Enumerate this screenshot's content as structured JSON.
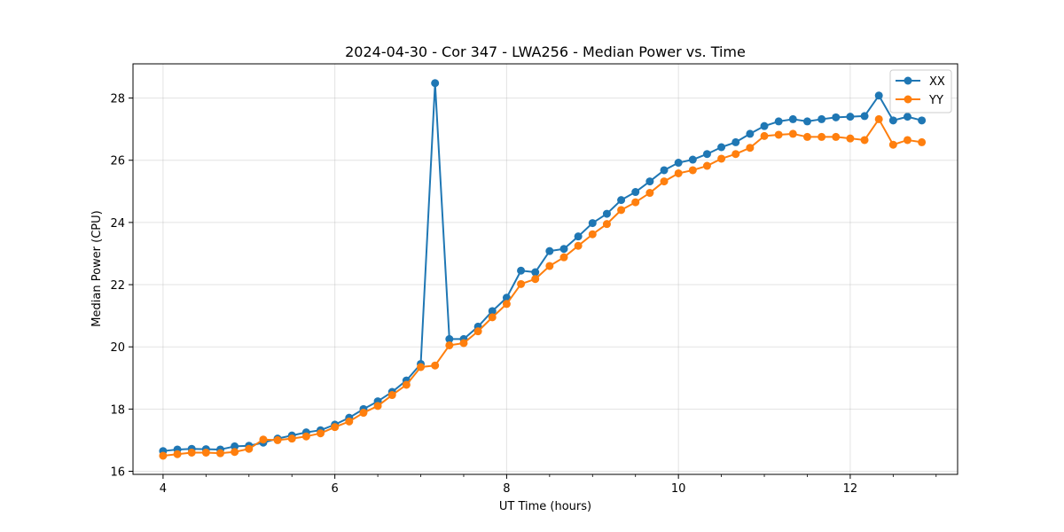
{
  "chart_data": {
    "type": "line",
    "title": "2024-04-30 - Cor 347 - LWA256 - Median Power vs. Time",
    "xlabel": "UT Time (hours)",
    "ylabel": "Median Power (CPU)",
    "xlim": [
      3.65,
      13.25
    ],
    "ylim": [
      15.9,
      29.1
    ],
    "xticks": [
      4,
      6,
      8,
      10,
      12
    ],
    "xticks_minor_step": 0.5,
    "yticks": [
      16,
      18,
      20,
      22,
      24,
      26,
      28
    ],
    "grid": true,
    "legend_position": "top-right",
    "x": [
      4.0,
      4.1667,
      4.3333,
      4.5,
      4.6667,
      4.8333,
      5.0,
      5.1667,
      5.3333,
      5.5,
      5.6667,
      5.8333,
      6.0,
      6.1667,
      6.3333,
      6.5,
      6.6667,
      6.8333,
      7.0,
      7.1667,
      7.3333,
      7.5,
      7.6667,
      7.8333,
      8.0,
      8.1667,
      8.3333,
      8.5,
      8.6667,
      8.8333,
      9.0,
      9.1667,
      9.3333,
      9.5,
      9.6667,
      9.8333,
      10.0,
      10.1667,
      10.3333,
      10.5,
      10.6667,
      10.8333,
      11.0,
      11.1667,
      11.3333,
      11.5,
      11.6667,
      11.8333,
      12.0,
      12.1667,
      12.3333,
      12.5,
      12.6667,
      12.8333
    ],
    "series": [
      {
        "name": "XX",
        "color": "#1f77b4",
        "values": [
          16.65,
          16.7,
          16.72,
          16.71,
          16.7,
          16.8,
          16.82,
          16.92,
          17.05,
          17.15,
          17.25,
          17.32,
          17.5,
          17.72,
          18.0,
          18.25,
          18.55,
          18.92,
          19.45,
          28.48,
          20.25,
          20.25,
          20.65,
          21.15,
          21.58,
          22.45,
          22.4,
          23.08,
          23.15,
          23.55,
          23.98,
          24.28,
          24.72,
          24.98,
          25.32,
          25.68,
          25.92,
          26.02,
          26.2,
          26.42,
          26.58,
          26.85,
          27.1,
          27.25,
          27.32,
          27.25,
          27.32,
          27.38,
          27.4,
          27.42,
          28.08,
          27.28,
          27.4,
          27.28
        ]
      },
      {
        "name": "YY",
        "color": "#ff7f0e",
        "values": [
          16.5,
          16.55,
          16.6,
          16.6,
          16.58,
          16.62,
          16.72,
          17.02,
          17.0,
          17.05,
          17.12,
          17.22,
          17.42,
          17.6,
          17.88,
          18.1,
          18.45,
          18.78,
          19.35,
          19.4,
          20.05,
          20.12,
          20.5,
          20.95,
          21.38,
          22.02,
          22.18,
          22.6,
          22.88,
          23.25,
          23.62,
          23.95,
          24.4,
          24.65,
          24.95,
          25.32,
          25.58,
          25.68,
          25.82,
          26.05,
          26.2,
          26.4,
          26.78,
          26.82,
          26.85,
          26.75,
          26.75,
          26.75,
          26.7,
          26.65,
          27.32,
          26.5,
          26.65,
          26.58
        ]
      }
    ]
  }
}
